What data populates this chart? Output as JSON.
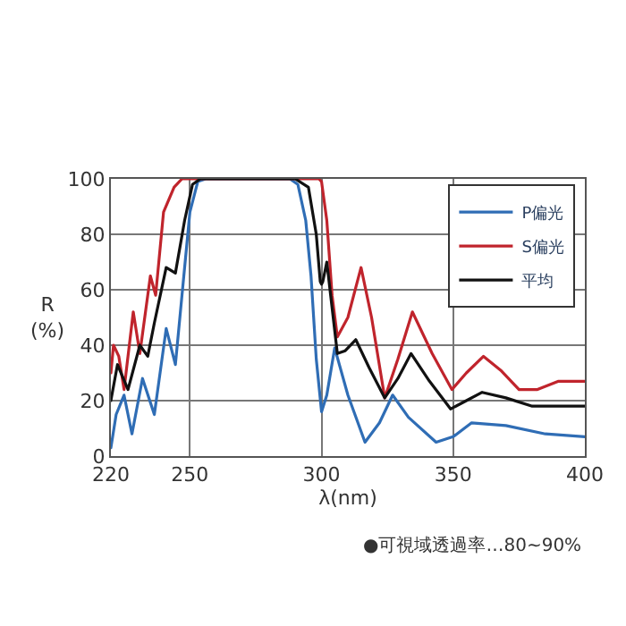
{
  "chart_data": {
    "type": "line",
    "xlabel": "λ(nm)",
    "ylabel": "R\n(%)",
    "xlim": [
      220,
      400
    ],
    "ylim": [
      0,
      100
    ],
    "xticks": [
      220,
      250,
      300,
      350,
      400
    ],
    "yticks": [
      0,
      20,
      40,
      60,
      80,
      100
    ],
    "grid": true,
    "legend": "top right",
    "series": [
      {
        "name": "P偏光",
        "color": "#2f6db5",
        "x": [
          220,
          222,
          225,
          228,
          232,
          236.5,
          241,
          244.5,
          247,
          250,
          253,
          256,
          288,
          291,
          294,
          296,
          298,
          300,
          302,
          305,
          310,
          316.5,
          322,
          327,
          333,
          343.5,
          350,
          357,
          370,
          385,
          400
        ],
        "values": [
          3,
          15,
          22,
          8,
          28,
          15,
          46,
          33,
          58,
          88,
          99,
          100,
          100,
          98,
          85,
          65,
          35,
          16,
          22,
          39,
          22,
          5,
          12,
          22,
          14,
          5,
          7,
          12,
          11,
          8,
          7
        ]
      },
      {
        "name": "S偏光",
        "color": "#c0242c",
        "x": [
          220,
          221,
          223,
          225,
          228.5,
          231,
          235,
          237,
          240,
          244,
          247,
          250,
          299,
          300,
          302,
          304,
          306,
          310,
          315,
          319,
          324,
          329,
          334.5,
          342,
          349.5,
          355,
          361.5,
          368,
          375,
          382,
          390,
          400
        ],
        "values": [
          30,
          40,
          36,
          24,
          52,
          37,
          65,
          58,
          88,
          97,
          100,
          100,
          100,
          99,
          85,
          58,
          43,
          50,
          68,
          50,
          21,
          35,
          52,
          37,
          24,
          30,
          36,
          31,
          24,
          24,
          27,
          27
        ]
      },
      {
        "name": "平均",
        "color": "#111111",
        "x": [
          220,
          222.5,
          226.5,
          231,
          234,
          236.5,
          241,
          244.5,
          248,
          251,
          254,
          290,
          295,
          298,
          299.5,
          300,
          300.5,
          302,
          306,
          309,
          313,
          318,
          324,
          329,
          334,
          341,
          349,
          355,
          361,
          370,
          380,
          390,
          400
        ],
        "values": [
          20,
          33,
          24,
          40,
          36,
          48,
          68,
          66,
          85,
          98,
          100,
          100,
          97,
          80,
          63,
          62,
          63,
          70,
          37,
          38,
          42,
          32,
          21,
          28,
          37,
          27,
          17,
          20,
          23,
          21,
          18,
          18,
          18
        ]
      }
    ],
    "annotations": [
      "●可視域透過率…80~90%"
    ]
  }
}
